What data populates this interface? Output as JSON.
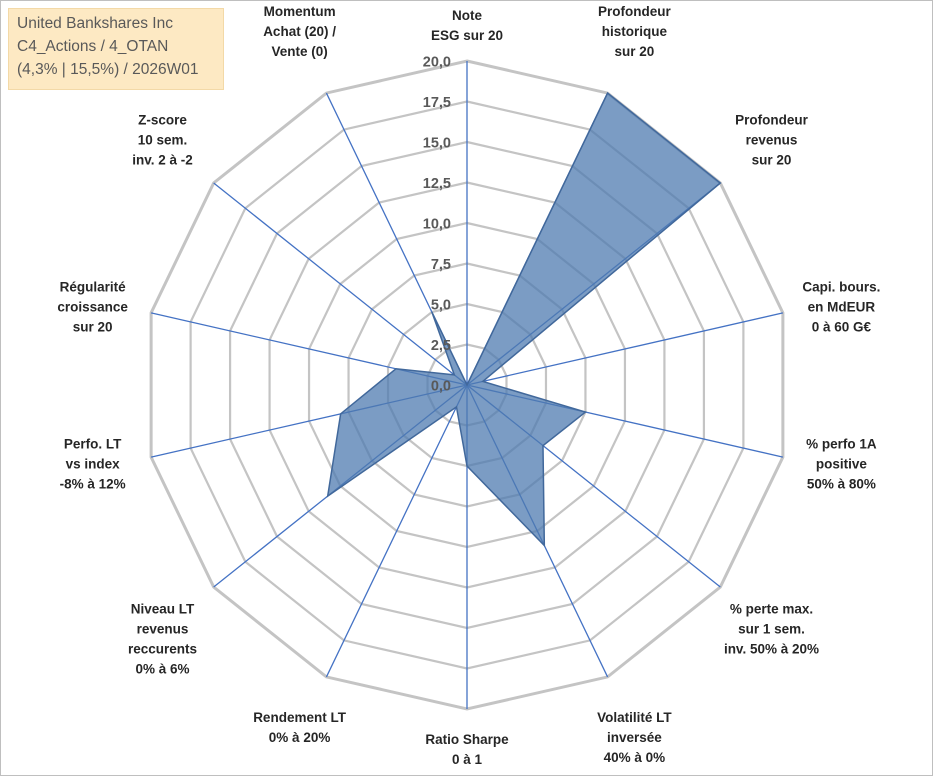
{
  "title_lines": [
    "United Bankshares Inc",
    "C4_Actions / 4_OTAN",
    "(4,3% | 15,5%) / 2026W01"
  ],
  "chart_data": {
    "type": "radar",
    "rmax": 20,
    "ticks": [
      "0,0",
      "2,5",
      "5,0",
      "7,5",
      "10,0",
      "12,5",
      "15,0",
      "17,5",
      "20,0"
    ],
    "tick_values": [
      0,
      2.5,
      5,
      7.5,
      10,
      12.5,
      15,
      17.5,
      20
    ],
    "grid": true,
    "legend": "none",
    "colors": {
      "fill": "#4f7bb0",
      "fill_opacity": 0.75,
      "outline": "#41689b",
      "spoke": "#4472c4",
      "grid": "#c4c4c4"
    },
    "axes": [
      {
        "label": [
          "Note",
          "ESG sur 20"
        ],
        "value": 0.0
      },
      {
        "label": [
          "Profondeur",
          "historique",
          "sur 20"
        ],
        "value": 20.0
      },
      {
        "label": [
          "Profondeur",
          "revenus",
          "sur 20"
        ],
        "value": 20.0
      },
      {
        "label": [
          "Capi. bours.",
          "en MdEUR",
          "0 à 60 G€"
        ],
        "value": 1.0
      },
      {
        "label": [
          "% perfo 1A",
          "positive",
          "50% à 80%"
        ],
        "value": 7.5
      },
      {
        "label": [
          "% perte max.",
          "sur 1 sem.",
          "inv. 50% à 20%"
        ],
        "value": 6.0
      },
      {
        "label": [
          "Volatilité LT",
          "inversée",
          "40% à 0%"
        ],
        "value": 11.0
      },
      {
        "label": [
          "Ratio Sharpe",
          "0 à 1"
        ],
        "value": 5.0
      },
      {
        "label": [
          "Rendement LT",
          "0% à 20%"
        ],
        "value": 1.5
      },
      {
        "label": [
          "Niveau LT",
          "revenus",
          "reccurents",
          "0% à 6%"
        ],
        "value": 11.0
      },
      {
        "label": [
          "Perfo. LT",
          "vs index",
          "-8% à 12%"
        ],
        "value": 8.0
      },
      {
        "label": [
          "Régularité",
          "croissance",
          "sur 20"
        ],
        "value": 4.5
      },
      {
        "label": [
          "Z-score",
          "10 sem.",
          "inv. 2 à -2"
        ],
        "value": 1.0
      },
      {
        "label": [
          "Momentum",
          "Achat (20) /",
          "Vente (0)"
        ],
        "value": 5.0
      }
    ]
  }
}
